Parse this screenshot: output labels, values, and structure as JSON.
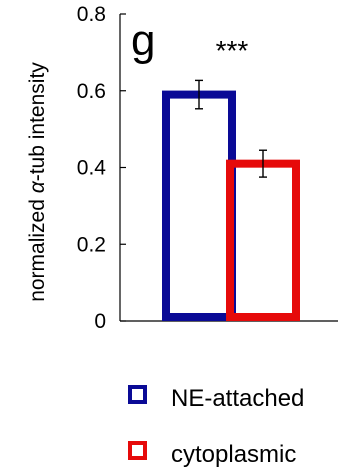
{
  "chart_data": {
    "type": "bar",
    "panel_label": "g",
    "significance": "***",
    "ylabel_prefix": "normalized ",
    "ylabel_symbol": "α",
    "ylabel_suffix": "-tub intensity",
    "ylim": [
      0,
      0.8
    ],
    "yticks": [
      "0",
      "0.2",
      "0.4",
      "0.6",
      "0.8"
    ],
    "categories": [
      "NE-attached",
      "cytoplasmic"
    ],
    "series": [
      {
        "name": "NE-attached",
        "value": 0.59,
        "error": 0.037,
        "color": "#0a0a96"
      },
      {
        "name": "cytoplasmic",
        "value": 0.41,
        "error": 0.035,
        "color": "#e60a0a"
      }
    ],
    "bar_style": "hollow",
    "legend_position": "bottom"
  }
}
